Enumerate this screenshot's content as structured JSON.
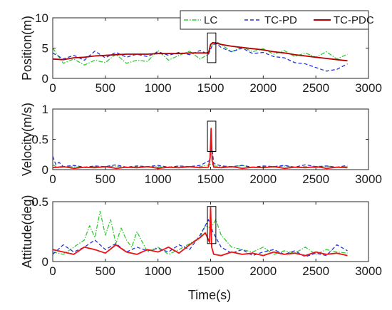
{
  "chart_data": [
    {
      "type": "line",
      "ylabel": "Position(m)",
      "xlim": [
        0,
        3000
      ],
      "ylim": [
        0,
        10
      ],
      "xticks": [
        "0",
        "500",
        "1000",
        "1500",
        "2000",
        "2500",
        "3000"
      ],
      "yticks": [
        "0",
        "5",
        "10"
      ],
      "legend": {
        "placement": "top-right",
        "entries": [
          "LC",
          "TC-PD",
          "TC-PDC"
        ]
      },
      "highlight": {
        "x": [
          1470,
          1550
        ],
        "y": [
          2.6,
          7.5
        ]
      },
      "series": [
        {
          "name": "LC",
          "color": "#33cc33",
          "style": "dashdot",
          "x": [
            0,
            100,
            200,
            300,
            400,
            500,
            600,
            700,
            800,
            900,
            1000,
            1100,
            1200,
            1300,
            1400,
            1480,
            1520,
            1560,
            1600,
            1700,
            1800,
            1900,
            2000,
            2100,
            2200,
            2300,
            2400,
            2500,
            2600,
            2700,
            2800
          ],
          "y": [
            5.0,
            2.5,
            3.2,
            2.2,
            3.0,
            2.6,
            4.0,
            2.5,
            3.0,
            2.8,
            4.6,
            3.0,
            3.8,
            4.5,
            3.2,
            4.0,
            5.8,
            6.0,
            5.6,
            4.4,
            5.2,
            4.4,
            4.9,
            4.0,
            4.6,
            3.6,
            4.2,
            3.5,
            4.4,
            3.2,
            4.0
          ]
        },
        {
          "name": "TC-PD",
          "color": "#2233dd",
          "style": "dash",
          "x": [
            0,
            100,
            200,
            300,
            400,
            500,
            600,
            700,
            800,
            900,
            1000,
            1100,
            1200,
            1300,
            1400,
            1480,
            1520,
            1560,
            1600,
            1700,
            1800,
            1900,
            2000,
            2100,
            2200,
            2300,
            2400,
            2500,
            2600,
            2700,
            2800
          ],
          "y": [
            4.2,
            3.2,
            3.8,
            3.0,
            4.5,
            3.4,
            4.3,
            3.5,
            4.0,
            3.6,
            4.4,
            3.8,
            4.3,
            3.9,
            4.6,
            4.0,
            5.6,
            5.7,
            5.1,
            4.4,
            5.0,
            4.1,
            4.3,
            3.6,
            3.4,
            2.6,
            2.4,
            1.8,
            1.2,
            1.5,
            2.4
          ]
        },
        {
          "name": "TC-PDC",
          "color": "#b30000",
          "style": "solid",
          "x": [
            0,
            100,
            200,
            300,
            400,
            500,
            600,
            700,
            800,
            900,
            1000,
            1100,
            1200,
            1300,
            1400,
            1480,
            1500,
            1520,
            1560,
            1600,
            1700,
            1800,
            1900,
            2000,
            2100,
            2200,
            2300,
            2400,
            2500,
            2600,
            2700,
            2800
          ],
          "y": [
            3.2,
            3.1,
            3.4,
            3.5,
            3.7,
            3.8,
            3.9,
            4.0,
            4.0,
            4.0,
            4.1,
            4.1,
            4.1,
            4.2,
            4.2,
            4.2,
            5.6,
            5.9,
            5.8,
            5.6,
            5.3,
            5.1,
            4.9,
            4.7,
            4.4,
            4.2,
            3.9,
            3.7,
            3.5,
            3.3,
            3.1,
            2.9
          ]
        }
      ]
    },
    {
      "type": "line",
      "ylabel": "Velocity(m/s)",
      "xlim": [
        0,
        3000
      ],
      "ylim": [
        0,
        1
      ],
      "xticks": [
        "0",
        "500",
        "1000",
        "1500",
        "2000",
        "2500",
        "3000"
      ],
      "yticks": [
        "0",
        "0.5",
        "1"
      ],
      "highlight": {
        "x": [
          1470,
          1550
        ],
        "y": [
          0.3,
          0.8
        ]
      },
      "series": [
        {
          "name": "LC",
          "color": "#33cc33",
          "style": "dashdot",
          "x": [
            0,
            50,
            100,
            200,
            300,
            400,
            500,
            600,
            700,
            800,
            900,
            1000,
            1100,
            1200,
            1300,
            1400,
            1490,
            1510,
            1530,
            1600,
            1700,
            1800,
            1900,
            2000,
            2100,
            2200,
            2300,
            2400,
            2500,
            2600,
            2700,
            2800
          ],
          "y": [
            0.08,
            0.03,
            0.04,
            0.05,
            0.03,
            0.05,
            0.04,
            0.06,
            0.03,
            0.05,
            0.04,
            0.05,
            0.03,
            0.06,
            0.04,
            0.05,
            0.08,
            0.1,
            0.06,
            0.05,
            0.04,
            0.07,
            0.03,
            0.05,
            0.04,
            0.06,
            0.04,
            0.05,
            0.03,
            0.06,
            0.04,
            0.05
          ]
        },
        {
          "name": "TC-PD",
          "color": "#2233dd",
          "style": "dash",
          "x": [
            0,
            30,
            60,
            100,
            200,
            300,
            400,
            500,
            600,
            700,
            800,
            900,
            1000,
            1100,
            1200,
            1300,
            1400,
            1490,
            1510,
            1530,
            1600,
            1700,
            1800,
            1900,
            2000,
            2100,
            2200,
            2300,
            2400,
            2500,
            2600,
            2700,
            2800
          ],
          "y": [
            0.22,
            0.08,
            0.12,
            0.05,
            0.07,
            0.04,
            0.06,
            0.05,
            0.08,
            0.04,
            0.06,
            0.05,
            0.07,
            0.04,
            0.06,
            0.05,
            0.07,
            0.15,
            0.4,
            0.1,
            0.06,
            0.05,
            0.07,
            0.04,
            0.06,
            0.05,
            0.07,
            0.04,
            0.08,
            0.05,
            0.06,
            0.04,
            0.07
          ]
        },
        {
          "name": "TC-PDC",
          "color": "#ee1111",
          "style": "solid",
          "x": [
            0,
            100,
            200,
            300,
            400,
            500,
            600,
            700,
            800,
            900,
            1000,
            1100,
            1200,
            1300,
            1400,
            1480,
            1495,
            1505,
            1515,
            1530,
            1600,
            1700,
            1800,
            1900,
            2000,
            2100,
            2200,
            2300,
            2400,
            2500,
            2600,
            2700,
            2800
          ],
          "y": [
            0.03,
            0.05,
            0.02,
            0.04,
            0.03,
            0.05,
            0.02,
            0.04,
            0.03,
            0.05,
            0.02,
            0.04,
            0.03,
            0.05,
            0.03,
            0.04,
            0.2,
            0.68,
            0.15,
            0.04,
            0.03,
            0.05,
            0.02,
            0.04,
            0.03,
            0.05,
            0.02,
            0.04,
            0.03,
            0.05,
            0.02,
            0.04,
            0.03
          ]
        }
      ]
    },
    {
      "type": "line",
      "ylabel": "Attitude(deg)",
      "xlabel": "Time(s)",
      "xlim": [
        0,
        3000
      ],
      "ylim": [
        0,
        0.5
      ],
      "xticks": [
        "0",
        "500",
        "1000",
        "1500",
        "2000",
        "2500",
        "3000"
      ],
      "yticks": [
        "0",
        "0.5"
      ],
      "highlight": {
        "x": [
          1470,
          1550
        ],
        "y": [
          0.15,
          0.46
        ]
      },
      "series": [
        {
          "name": "LC",
          "color": "#33cc33",
          "style": "dashdot",
          "x": [
            0,
            100,
            200,
            300,
            350,
            400,
            450,
            500,
            550,
            600,
            650,
            700,
            750,
            800,
            900,
            1000,
            1100,
            1200,
            1300,
            1400,
            1450,
            1500,
            1550,
            1600,
            1700,
            1800,
            1900,
            2000,
            2100,
            2200,
            2300,
            2400,
            2500,
            2600,
            2700,
            2800
          ],
          "y": [
            0.08,
            0.06,
            0.12,
            0.18,
            0.3,
            0.2,
            0.42,
            0.22,
            0.35,
            0.15,
            0.28,
            0.18,
            0.12,
            0.25,
            0.08,
            0.12,
            0.06,
            0.1,
            0.15,
            0.2,
            0.3,
            0.28,
            0.35,
            0.22,
            0.12,
            0.1,
            0.08,
            0.12,
            0.06,
            0.09,
            0.07,
            0.12,
            0.06,
            0.1,
            0.08,
            0.07
          ]
        },
        {
          "name": "TC-PD",
          "color": "#2233dd",
          "style": "dash",
          "x": [
            0,
            100,
            200,
            300,
            400,
            500,
            600,
            700,
            800,
            900,
            1000,
            1100,
            1200,
            1300,
            1400,
            1450,
            1480,
            1520,
            1600,
            1700,
            1800,
            1900,
            2000,
            2100,
            2200,
            2300,
            2400,
            2500,
            2600,
            2700,
            2800
          ],
          "y": [
            0.06,
            0.14,
            0.08,
            0.12,
            0.18,
            0.1,
            0.15,
            0.08,
            0.12,
            0.09,
            0.11,
            0.08,
            0.14,
            0.1,
            0.22,
            0.3,
            0.35,
            0.25,
            0.12,
            0.07,
            0.1,
            0.05,
            0.08,
            0.1,
            0.06,
            0.09,
            0.04,
            0.07,
            0.05,
            0.14,
            0.09
          ]
        },
        {
          "name": "TC-PDC",
          "color": "#ee1111",
          "style": "solid",
          "x": [
            0,
            100,
            200,
            300,
            400,
            500,
            600,
            700,
            800,
            900,
            1000,
            1100,
            1200,
            1300,
            1400,
            1450,
            1490,
            1500,
            1510,
            1530,
            1600,
            1700,
            1800,
            1900,
            2000,
            2100,
            2200,
            2300,
            2400,
            2500,
            2600,
            2700,
            2800
          ],
          "y": [
            0.1,
            0.08,
            0.06,
            0.12,
            0.1,
            0.07,
            0.14,
            0.08,
            0.06,
            0.1,
            0.08,
            0.12,
            0.07,
            0.14,
            0.2,
            0.24,
            0.16,
            0.45,
            0.12,
            0.06,
            0.05,
            0.08,
            0.06,
            0.07,
            0.05,
            0.08,
            0.06,
            0.07,
            0.05,
            0.08,
            0.06,
            0.07,
            0.05
          ]
        }
      ]
    }
  ]
}
